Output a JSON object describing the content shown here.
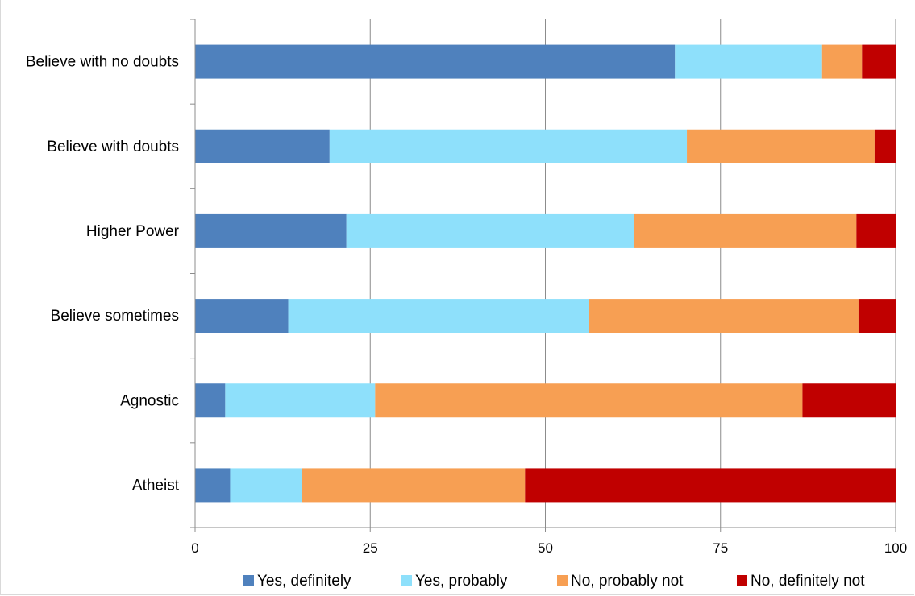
{
  "chart_data": {
    "type": "bar",
    "orientation": "horizontal",
    "stacked": true,
    "categories": [
      "Believe with no doubts",
      "Believe with doubts",
      "Higher Power",
      "Believe sometimes",
      "Agnostic",
      "Atheist"
    ],
    "series": [
      {
        "name": "Yes, definitely",
        "color": "#4f81bd",
        "values": [
          68.5,
          19.2,
          21.6,
          13.3,
          4.3,
          5.0
        ]
      },
      {
        "name": "Yes, probably",
        "color": "#8ee0fb",
        "values": [
          21.0,
          51.0,
          41.0,
          42.9,
          21.4,
          10.3
        ]
      },
      {
        "name": "No, probably not",
        "color": "#f79f53",
        "values": [
          5.7,
          26.8,
          31.8,
          38.5,
          61.0,
          31.8
        ]
      },
      {
        "name": "No, definitely not",
        "color": "#c00000",
        "values": [
          4.8,
          3.0,
          5.6,
          5.3,
          13.3,
          52.9
        ]
      }
    ],
    "xlim": [
      0,
      100
    ],
    "xticks": [
      "0",
      "25",
      "50",
      "75",
      "100"
    ],
    "title": "",
    "xlabel": "",
    "ylabel": "",
    "grid": "vertical",
    "legend_position": "bottom"
  }
}
